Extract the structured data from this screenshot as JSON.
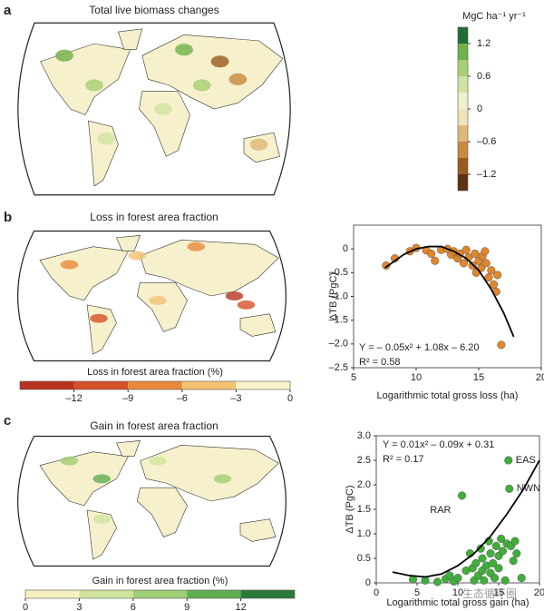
{
  "panels": [
    {
      "label": "a",
      "title": "Total live biomass changes",
      "colorbar": {
        "label": "MgC ha⁻¹ yr⁻¹",
        "orientation": "vertical",
        "lim": [
          -1.5,
          1.5
        ],
        "ticks": [
          1.2,
          0.6,
          0,
          {
            "value": -0.6,
            "label": "–0.6"
          },
          {
            "value": -1.2,
            "label": "–1.2"
          }
        ],
        "colors": [
          "#5e3210",
          "#9a5a1c",
          "#c78a3e",
          "#dfb777",
          "#f1e2b8",
          "#eef0cc",
          "#cfe3a0",
          "#a6d072",
          "#6fb247",
          "#1f6e35"
        ]
      }
    },
    {
      "label": "b",
      "title": "Loss in forest area fraction",
      "colorbar": {
        "label": "Loss in forest area fraction (%)",
        "orientation": "horizontal",
        "lim": [
          -15,
          0
        ],
        "ticks": [
          {
            "value": -12,
            "label": "–12"
          },
          {
            "value": -9,
            "label": "–9"
          },
          {
            "value": -6,
            "label": "–6"
          },
          {
            "value": -3,
            "label": "–3"
          },
          0
        ],
        "colors": [
          "#b8331d",
          "#d6502a",
          "#e8893a",
          "#f3c272",
          "#fbf1c9"
        ]
      }
    },
    {
      "label": "c",
      "title": "Gain in forest area fraction",
      "colorbar": {
        "label": "Gain in forest area fraction (%)",
        "orientation": "horizontal",
        "lim": [
          0,
          15
        ],
        "ticks": [
          0,
          3,
          6,
          9,
          12
        ],
        "colors": [
          "#f5f1c3",
          "#d0e59b",
          "#9fcf73",
          "#5fae52",
          "#2b7a3a"
        ]
      }
    }
  ],
  "chart_data": [
    {
      "type": "scatter",
      "x_label": "Logarithmic total gross loss (ha)",
      "y_label": "ΔTB (PgC)",
      "equation": "Y = – 0.05x² + 1.08x – 6.20",
      "r_squared": "R² = 0.58",
      "xlim": [
        5,
        20
      ],
      "xticks": [
        5,
        10,
        15,
        20
      ],
      "ylim": [
        -2.5,
        0.5
      ],
      "yticks": [
        0,
        {
          "value": -0.5,
          "label": "–0.5"
        },
        {
          "value": -1,
          "label": "–1.0"
        },
        {
          "value": -1.5,
          "label": "–1.5"
        },
        {
          "value": -2,
          "label": "–2.0"
        },
        {
          "value": -2.5,
          "label": "–2.5"
        }
      ],
      "color": "#e0862c",
      "x": [
        7.6,
        8.3,
        9.5,
        10,
        10.8,
        11.2,
        11.5,
        12,
        12.5,
        12.8,
        13,
        13.3,
        13.5,
        13.8,
        14,
        14.2,
        14.5,
        14.7,
        14.8,
        15,
        15.2,
        15.3,
        15.5,
        15.6,
        15.8,
        16,
        16.2,
        16.4,
        16.5,
        16.8
      ],
      "values": [
        -0.35,
        -0.2,
        -0.05,
        0.02,
        -0.03,
        -0.1,
        -0.25,
        -0.02,
        0,
        -0.12,
        -0.05,
        -0.2,
        -0.1,
        -0.3,
        -0.02,
        -0.18,
        -0.35,
        -0.1,
        -0.5,
        -0.25,
        -0.4,
        -0.15,
        -0.05,
        -0.3,
        -0.6,
        -0.45,
        -0.75,
        -0.9,
        -0.55,
        -2.02
      ],
      "fit": {
        "x": [
          7.5,
          9,
          10,
          11,
          12,
          13,
          14,
          15,
          16,
          17,
          17.8
        ],
        "values": [
          -0.4,
          -0.12,
          0,
          0.05,
          0.05,
          -0.05,
          -0.2,
          -0.45,
          -0.85,
          -1.35,
          -1.85
        ]
      }
    },
    {
      "type": "scatter",
      "x_label": "Logarithmic total gross gain (ha)",
      "y_label": "ΔTB (PgC)",
      "equation": "Y = 0.01x² – 0.09x + 0.31",
      "r_squared": "R² = 0.17",
      "xlim": [
        0,
        20
      ],
      "xticks": [
        0,
        5,
        10,
        15,
        20
      ],
      "ylim": [
        0,
        3
      ],
      "yticks": [
        0,
        0.5,
        {
          "value": 1,
          "label": "1.0"
        },
        1.5,
        {
          "value": 2,
          "label": "2.0"
        },
        2.5,
        {
          "value": 3,
          "label": "3.0"
        }
      ],
      "color": "#3fae3a",
      "x": [
        4.5,
        6,
        7.5,
        8.5,
        9,
        9.5,
        10,
        10.5,
        11,
        11.5,
        11.8,
        12,
        12.2,
        12.5,
        12.8,
        13,
        13,
        13.2,
        13.5,
        13.8,
        14,
        14,
        14.3,
        14.5,
        14.7,
        15,
        15,
        15.3,
        15.5,
        15.8,
        16,
        16.2,
        16.3,
        16.5,
        16.8,
        17,
        17.2,
        17.8
      ],
      "values": [
        0.07,
        0.05,
        0.02,
        0.08,
        0.15,
        0.03,
        0.1,
        1.78,
        0.25,
        0.6,
        0.3,
        0.05,
        0.4,
        0.15,
        0.7,
        0.25,
        0.5,
        0.05,
        0.35,
        0.85,
        0.2,
        0.6,
        0.4,
        0.1,
        0.75,
        0.3,
        0.55,
        0.9,
        0.65,
        0.05,
        0.8,
        2.5,
        1.92,
        0.75,
        0.45,
        0.85,
        0.6,
        0.1
      ],
      "point_labels": [
        null,
        null,
        null,
        null,
        null,
        null,
        null,
        "RAR",
        null,
        null,
        null,
        null,
        null,
        null,
        null,
        null,
        null,
        null,
        null,
        null,
        null,
        null,
        null,
        null,
        null,
        null,
        null,
        null,
        null,
        null,
        null,
        "EAS",
        "NWN",
        null,
        null,
        null,
        null,
        null
      ],
      "fit": {
        "x": [
          2,
          4,
          6,
          8,
          10,
          12,
          14,
          16,
          18,
          20
        ],
        "values": [
          0.22,
          0.15,
          0.12,
          0.18,
          0.35,
          0.6,
          0.95,
          1.4,
          1.9,
          2.5
        ]
      }
    }
  ],
  "watermark": "生态循环圈"
}
